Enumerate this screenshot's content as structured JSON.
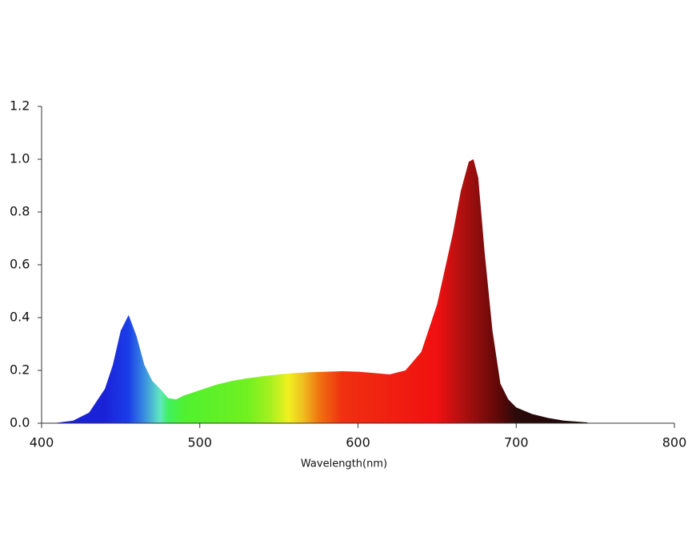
{
  "chart_data": {
    "type": "area",
    "xlabel": "Wavelength(nm)",
    "x": [
      400,
      410,
      420,
      430,
      440,
      445,
      450,
      455,
      460,
      465,
      470,
      475,
      480,
      485,
      490,
      500,
      510,
      520,
      530,
      540,
      550,
      560,
      570,
      580,
      590,
      600,
      610,
      620,
      630,
      640,
      650,
      660,
      665,
      670,
      673,
      676,
      680,
      685,
      690,
      695,
      700,
      710,
      720,
      730,
      745
    ],
    "values": [
      0,
      0.002,
      0.01,
      0.04,
      0.13,
      0.22,
      0.35,
      0.41,
      0.33,
      0.22,
      0.16,
      0.13,
      0.095,
      0.09,
      0.105,
      0.125,
      0.145,
      0.16,
      0.17,
      0.178,
      0.185,
      0.19,
      0.193,
      0.195,
      0.197,
      0.195,
      0.19,
      0.185,
      0.2,
      0.27,
      0.45,
      0.72,
      0.88,
      0.99,
      1.0,
      0.93,
      0.65,
      0.35,
      0.15,
      0.09,
      0.06,
      0.035,
      0.02,
      0.01,
      0.003
    ],
    "xlim": [
      400,
      800
    ],
    "ylim": [
      0,
      1.2
    ],
    "xticks": [
      400,
      500,
      600,
      700,
      800
    ],
    "yticks": [
      {
        "value": 0,
        "label": "0.0"
      },
      0.2,
      0.4,
      0.6,
      0.8,
      {
        "value": 1,
        "label": "1.0"
      },
      1.2
    ]
  }
}
